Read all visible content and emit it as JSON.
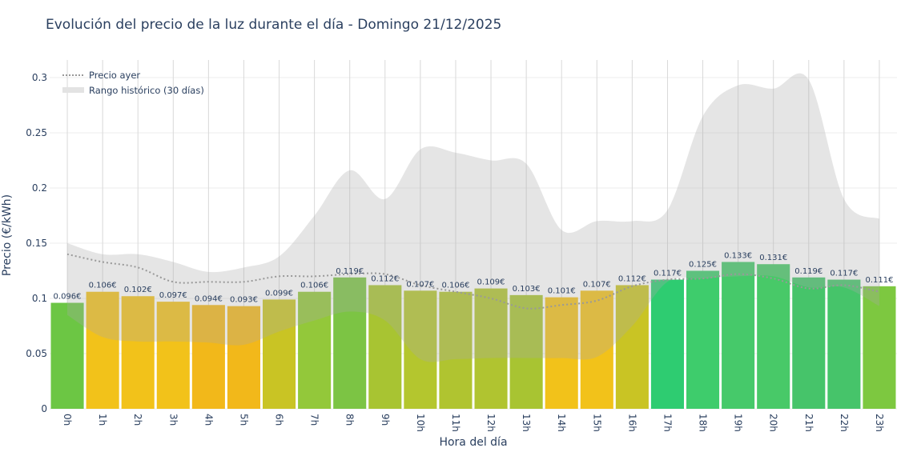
{
  "chart_data": {
    "type": "bar",
    "title": "Evolución del precio de la luz durante el día - Domingo 21/12/2025",
    "xlabel": "Hora del día",
    "ylabel": "Precio (€/kWh)",
    "ylim": [
      0,
      0.315
    ],
    "yticks": [
      0,
      0.05,
      0.1,
      0.15,
      0.2,
      0.25,
      0.3
    ],
    "ytick_labels": [
      "0",
      "0.05",
      "0.1",
      "0.15",
      "0.2",
      "0.25",
      "0.3"
    ],
    "grid": true,
    "legend_position": "top-left",
    "categories": [
      "0h",
      "1h",
      "2h",
      "3h",
      "4h",
      "5h",
      "6h",
      "7h",
      "8h",
      "9h",
      "10h",
      "11h",
      "12h",
      "13h",
      "14h",
      "15h",
      "16h",
      "17h",
      "18h",
      "19h",
      "20h",
      "21h",
      "22h",
      "23h"
    ],
    "values": [
      0.096,
      0.106,
      0.102,
      0.097,
      0.094,
      0.093,
      0.099,
      0.106,
      0.119,
      0.112,
      0.107,
      0.106,
      0.109,
      0.103,
      0.101,
      0.107,
      0.112,
      0.117,
      0.125,
      0.133,
      0.131,
      0.119,
      0.117,
      0.111
    ],
    "data_labels": [
      "0.096€",
      "0.106€",
      "0.102€",
      "0.097€",
      "0.094€",
      "0.093€",
      "0.099€",
      "0.106€",
      "0.119€",
      "0.112€",
      "0.107€",
      "0.106€",
      "0.109€",
      "0.103€",
      "0.101€",
      "0.107€",
      "0.112€",
      "0.117€",
      "0.125€",
      "0.133€",
      "0.131€",
      "0.119€",
      "0.117€",
      "0.111€"
    ],
    "bar_colors": [
      "#6cc644",
      "#f2c21a",
      "#f2c21a",
      "#f2c21a",
      "#f2b81a",
      "#f2b81a",
      "#c9c424",
      "#93c83a",
      "#7cc444",
      "#a8c432",
      "#b4c62e",
      "#b0c430",
      "#b0c430",
      "#a8c432",
      "#f2c21a",
      "#f2c21a",
      "#c9c424",
      "#2ecc71",
      "#3ecc6c",
      "#46c96a",
      "#48c968",
      "#46c46a",
      "#46c46a",
      "#7dc840"
    ],
    "series": [
      {
        "name": "Precio ayer",
        "type": "line",
        "style": "dotted",
        "color": "#999999",
        "values": [
          0.14,
          0.133,
          0.128,
          0.115,
          0.115,
          0.115,
          0.12,
          0.12,
          0.122,
          0.122,
          0.112,
          0.106,
          0.1,
          0.091,
          0.094,
          0.098,
          0.111,
          0.117,
          0.118,
          0.122,
          0.118,
          0.109,
          0.112,
          0.106
        ]
      },
      {
        "name": "Rango histórico (30 días)",
        "type": "band",
        "color": "#cccccc",
        "upper": [
          0.15,
          0.14,
          0.14,
          0.133,
          0.124,
          0.128,
          0.138,
          0.175,
          0.216,
          0.19,
          0.235,
          0.232,
          0.225,
          0.222,
          0.162,
          0.17,
          0.17,
          0.18,
          0.265,
          0.293,
          0.29,
          0.298,
          0.19,
          0.172
        ],
        "lower": [
          0.085,
          0.065,
          0.061,
          0.061,
          0.06,
          0.058,
          0.07,
          0.08,
          0.088,
          0.08,
          0.045,
          0.045,
          0.046,
          0.046,
          0.046,
          0.047,
          0.075,
          0.115,
          0.118,
          0.12,
          0.12,
          0.11,
          0.11,
          0.093
        ]
      }
    ]
  }
}
